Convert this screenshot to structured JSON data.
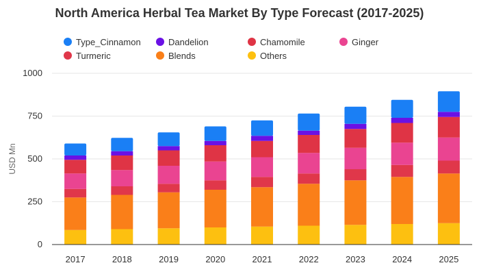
{
  "chart_data": {
    "type": "bar",
    "stacked": true,
    "title": "North America Herbal Tea Market By Type Forecast (2017-2025)",
    "ylabel": "USD Mn",
    "xlabel": "",
    "ylim": [
      0,
      1000
    ],
    "yticks": [
      0,
      250,
      500,
      750,
      1000
    ],
    "grid": true,
    "legend_position": "top",
    "categories": [
      "2017",
      "2018",
      "2019",
      "2020",
      "2021",
      "2022",
      "2023",
      "2024",
      "2025"
    ],
    "series": [
      {
        "name": "Others",
        "color": "#fdc010",
        "values": [
          85,
          90,
          95,
          100,
          105,
          110,
          115,
          120,
          125
        ]
      },
      {
        "name": "Blends",
        "color": "#fa7f19",
        "values": [
          190,
          200,
          210,
          220,
          230,
          245,
          260,
          275,
          290
        ]
      },
      {
        "name": "Turmeric",
        "color": "#e0374a",
        "values": [
          50,
          50,
          50,
          55,
          60,
          60,
          65,
          70,
          75
        ]
      },
      {
        "name": "Ginger",
        "color": "#ea4491",
        "values": [
          90,
          95,
          105,
          110,
          115,
          120,
          125,
          130,
          135
        ]
      },
      {
        "name": "Chamomile",
        "color": "#df3445",
        "values": [
          80,
          85,
          90,
          95,
          95,
          105,
          110,
          115,
          120
        ]
      },
      {
        "name": "Dandelion",
        "color": "#6a11e5",
        "values": [
          25,
          25,
          25,
          25,
          30,
          25,
          30,
          30,
          30
        ]
      },
      {
        "name": "Type_Cinnamon",
        "color": "#1a7ff5",
        "values": [
          70,
          78,
          80,
          85,
          90,
          100,
          100,
          105,
          120
        ]
      }
    ],
    "legend_order": [
      "Type_Cinnamon",
      "Dandelion",
      "Chamomile",
      "Ginger",
      "Turmeric",
      "Blends",
      "Others"
    ]
  }
}
